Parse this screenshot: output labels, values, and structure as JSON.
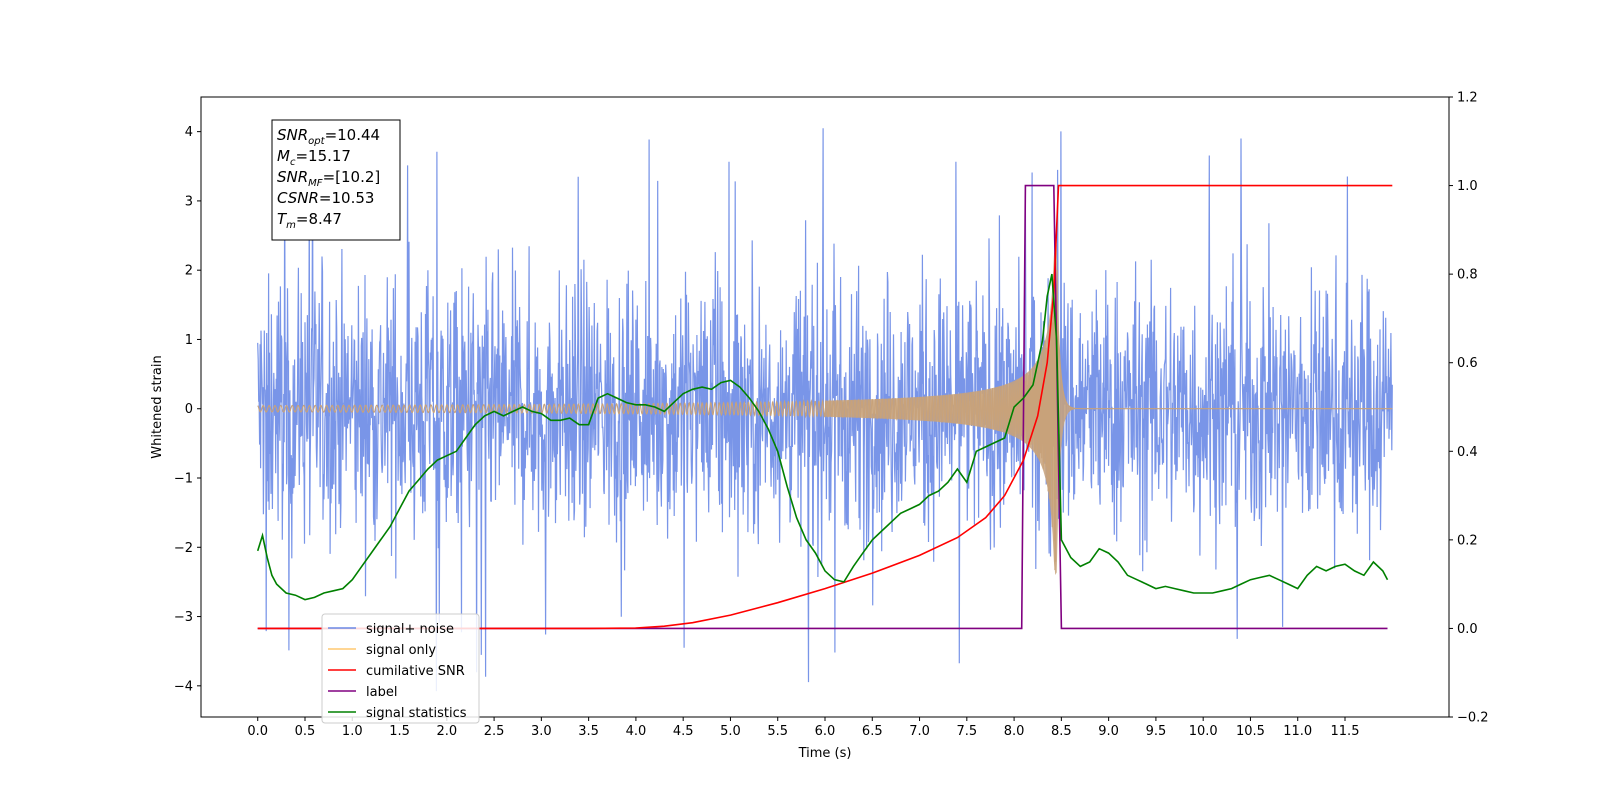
{
  "chart_data": {
    "type": "line",
    "xlabel": "Time (s)",
    "ylabel": "Whitened strain",
    "xlim": [
      -0.6,
      12.6
    ],
    "ylim_left": [
      -4.45,
      4.5
    ],
    "ylim_right": [
      -0.2,
      1.2
    ],
    "x_ticks": [
      "0.0",
      "0.5",
      "1.0",
      "1.5",
      "2.0",
      "2.5",
      "3.0",
      "3.5",
      "4.0",
      "4.5",
      "5.0",
      "5.5",
      "6.0",
      "6.5",
      "7.0",
      "7.5",
      "8.0",
      "8.5",
      "9.0",
      "9.5",
      "10.0",
      "10.5",
      "11.0",
      "11.5"
    ],
    "y_ticks_left": [
      "4",
      "3",
      "2",
      "1",
      "0",
      "−1",
      "−2",
      "−3",
      "−4"
    ],
    "y_ticks_right": [
      "1.2",
      "1.0",
      "0.8",
      "0.6",
      "0.4",
      "0.2",
      "0.0",
      "−0.2"
    ],
    "grid": false,
    "legend_position": "lower-left",
    "annotation": [
      {
        "base": "SNR",
        "sub": "opt",
        "value": "=10.44"
      },
      {
        "base": "M",
        "sub": "c",
        "value": "=15.17"
      },
      {
        "base": "SNR",
        "sub": "MF",
        "value": "=[10.2]"
      },
      {
        "base": "CSNR",
        "sub": "",
        "value": "=10.53"
      },
      {
        "base": "T",
        "sub": "m",
        "value": "=8.47"
      }
    ],
    "series": [
      {
        "name": "signal+ noise",
        "axis": "left",
        "color": "#6a89e6",
        "description": "whitened noise, amplitude approx ±2.5 with spikes to ±4",
        "x_range": [
          0,
          12.0
        ]
      },
      {
        "name": "signal only",
        "axis": "left",
        "color": "#ffb347",
        "description": "chirp, near 0 until ~6 s, envelope growing to ~2.4 at 8.45 s, then damping quickly"
      },
      {
        "name": "cumilative SNR",
        "axis": "right",
        "color": "#ff0000",
        "x": [
          0,
          3.5,
          4.0,
          4.3,
          4.6,
          5.0,
          5.5,
          6.0,
          6.5,
          7.0,
          7.4,
          7.7,
          7.9,
          8.1,
          8.25,
          8.35,
          8.42,
          8.47,
          8.5,
          12.0
        ],
        "y": [
          0,
          0,
          0.001,
          0.005,
          0.013,
          0.03,
          0.058,
          0.09,
          0.125,
          0.165,
          0.205,
          0.25,
          0.3,
          0.38,
          0.48,
          0.6,
          0.76,
          1.0,
          1.0,
          1.0
        ]
      },
      {
        "name": "label",
        "axis": "right",
        "color": "#800080",
        "x": [
          0,
          8.08,
          8.12,
          8.42,
          8.5,
          11.95
        ],
        "y": [
          0,
          0,
          1.0,
          1.0,
          0,
          0
        ]
      },
      {
        "name": "signal statistics",
        "axis": "right",
        "color": "#008000",
        "x": [
          0,
          0.05,
          0.1,
          0.15,
          0.2,
          0.3,
          0.4,
          0.5,
          0.6,
          0.7,
          0.8,
          0.9,
          1.0,
          1.1,
          1.2,
          1.3,
          1.4,
          1.5,
          1.6,
          1.7,
          1.8,
          1.9,
          2.0,
          2.1,
          2.2,
          2.3,
          2.4,
          2.5,
          2.6,
          2.7,
          2.8,
          2.9,
          3.0,
          3.1,
          3.2,
          3.3,
          3.4,
          3.5,
          3.6,
          3.7,
          3.8,
          3.9,
          4.0,
          4.1,
          4.2,
          4.3,
          4.4,
          4.5,
          4.6,
          4.7,
          4.8,
          4.9,
          5.0,
          5.1,
          5.2,
          5.3,
          5.4,
          5.5,
          5.6,
          5.7,
          5.8,
          5.9,
          6.0,
          6.1,
          6.2,
          6.3,
          6.4,
          6.5,
          6.6,
          6.7,
          6.8,
          6.9,
          7.0,
          7.1,
          7.2,
          7.3,
          7.4,
          7.5,
          7.6,
          7.7,
          7.8,
          7.9,
          8.0,
          8.1,
          8.2,
          8.3,
          8.35,
          8.4,
          8.45,
          8.5,
          8.6,
          8.7,
          8.8,
          8.9,
          9.0,
          9.1,
          9.2,
          9.3,
          9.4,
          9.5,
          9.6,
          9.7,
          9.8,
          9.9,
          10.0,
          10.1,
          10.2,
          10.3,
          10.4,
          10.5,
          10.6,
          10.7,
          10.8,
          10.9,
          11.0,
          11.1,
          11.2,
          11.3,
          11.4,
          11.5,
          11.6,
          11.7,
          11.8,
          11.9,
          11.95
        ],
        "y": [
          0.175,
          0.21,
          0.16,
          0.12,
          0.1,
          0.08,
          0.075,
          0.065,
          0.07,
          0.08,
          0.085,
          0.09,
          0.11,
          0.14,
          0.17,
          0.2,
          0.23,
          0.27,
          0.31,
          0.335,
          0.36,
          0.38,
          0.39,
          0.4,
          0.43,
          0.46,
          0.48,
          0.49,
          0.48,
          0.49,
          0.5,
          0.49,
          0.485,
          0.47,
          0.47,
          0.475,
          0.46,
          0.46,
          0.52,
          0.53,
          0.52,
          0.51,
          0.505,
          0.505,
          0.5,
          0.49,
          0.51,
          0.53,
          0.54,
          0.545,
          0.54,
          0.555,
          0.56,
          0.545,
          0.52,
          0.49,
          0.45,
          0.4,
          0.32,
          0.25,
          0.2,
          0.17,
          0.13,
          0.11,
          0.105,
          0.14,
          0.17,
          0.2,
          0.22,
          0.24,
          0.26,
          0.27,
          0.28,
          0.3,
          0.31,
          0.33,
          0.36,
          0.33,
          0.4,
          0.41,
          0.42,
          0.43,
          0.5,
          0.52,
          0.55,
          0.65,
          0.75,
          0.8,
          0.65,
          0.2,
          0.16,
          0.14,
          0.15,
          0.18,
          0.17,
          0.15,
          0.12,
          0.11,
          0.1,
          0.09,
          0.095,
          0.09,
          0.085,
          0.08,
          0.08,
          0.08,
          0.085,
          0.09,
          0.1,
          0.11,
          0.115,
          0.12,
          0.11,
          0.1,
          0.09,
          0.12,
          0.14,
          0.13,
          0.14,
          0.145,
          0.13,
          0.12,
          0.15,
          0.13,
          0.11
        ]
      }
    ]
  }
}
